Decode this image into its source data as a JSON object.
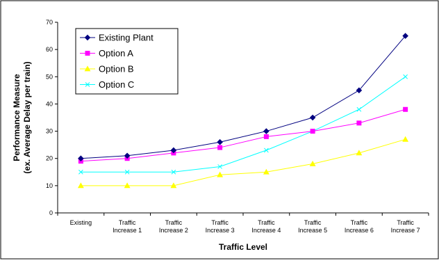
{
  "chart_data": {
    "type": "line",
    "title": "",
    "xlabel": "Traffic Level",
    "ylabel": "Performance Measure\n(ex. Average Delay per train)",
    "ylim": [
      0,
      70
    ],
    "yticks": [
      0,
      10,
      20,
      30,
      40,
      50,
      60,
      70
    ],
    "grid": false,
    "legend_position": "top-left",
    "categories": [
      "Existing",
      "Traffic\nIncrease 1",
      "Traffic\nIncrease 2",
      "Traffic\nIncrease 3",
      "Traffic\nIncrease 4",
      "Traffic\nIncrease 5",
      "Traffic\nIncrease 6",
      "Traffic\nIncrease 7"
    ],
    "series": [
      {
        "name": "Existing Plant",
        "color": "#000080",
        "marker": "diamond",
        "values": [
          20,
          21,
          23,
          26,
          30,
          35,
          45,
          65
        ]
      },
      {
        "name": "Option A",
        "color": "#FF00FF",
        "marker": "square",
        "values": [
          19,
          20,
          22,
          24,
          28,
          30,
          33,
          38
        ]
      },
      {
        "name": "Option B",
        "color": "#FFFF00",
        "marker": "triangle",
        "values": [
          10,
          10,
          10,
          14,
          15,
          18,
          22,
          27
        ]
      },
      {
        "name": "Option C",
        "color": "#00FFFF",
        "marker": "x",
        "values": [
          15,
          15,
          15,
          17,
          23,
          30,
          38,
          50
        ]
      }
    ]
  }
}
